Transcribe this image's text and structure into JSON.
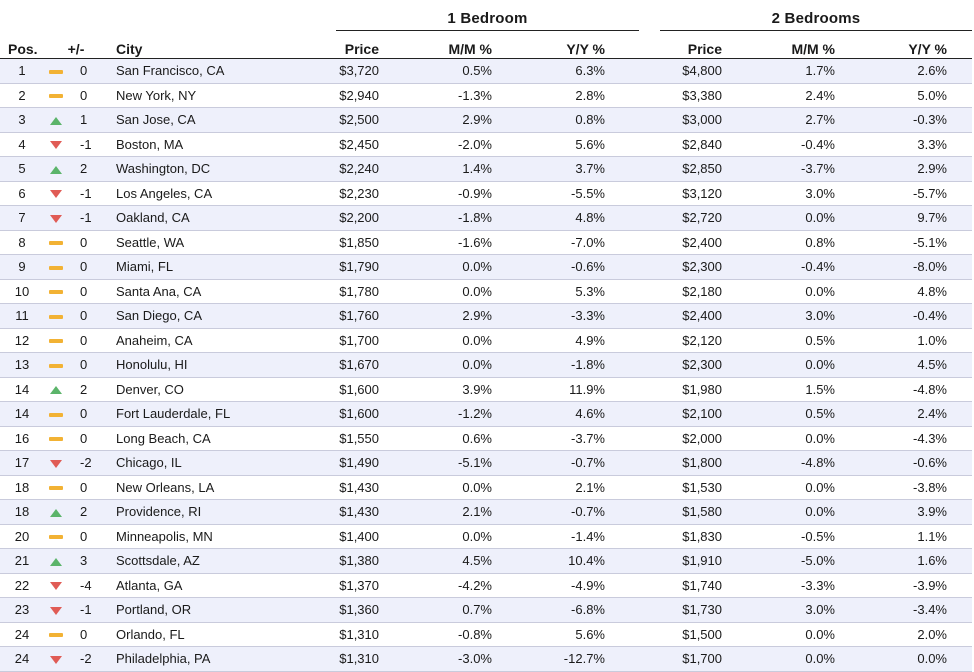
{
  "groups": {
    "one_bedroom": "1 Bedroom",
    "two_bedrooms": "2 Bedrooms"
  },
  "headers": {
    "pos": "Pos.",
    "change": "+/-",
    "city": "City",
    "price1": "Price",
    "mm1": "M/M %",
    "yy1": "Y/Y %",
    "price2": "Price",
    "mm2": "M/M %",
    "yy2": "Y/Y %"
  },
  "colors": {
    "up": "#5bb46a",
    "down": "#e05b55",
    "flat": "#f2b234",
    "row_stripe": "#eef0fb"
  },
  "rows": [
    {
      "pos": "1",
      "trend": "flat",
      "change": "0",
      "city": "San Francisco, CA",
      "p1": "$3,720",
      "mm1": "0.5%",
      "yy1": "6.3%",
      "p2": "$4,800",
      "mm2": "1.7%",
      "yy2": "2.6%"
    },
    {
      "pos": "2",
      "trend": "flat",
      "change": "0",
      "city": "New York, NY",
      "p1": "$2,940",
      "mm1": "-1.3%",
      "yy1": "2.8%",
      "p2": "$3,380",
      "mm2": "2.4%",
      "yy2": "5.0%"
    },
    {
      "pos": "3",
      "trend": "up",
      "change": "1",
      "city": "San Jose, CA",
      "p1": "$2,500",
      "mm1": "2.9%",
      "yy1": "0.8%",
      "p2": "$3,000",
      "mm2": "2.7%",
      "yy2": "-0.3%"
    },
    {
      "pos": "4",
      "trend": "down",
      "change": "-1",
      "city": "Boston, MA",
      "p1": "$2,450",
      "mm1": "-2.0%",
      "yy1": "5.6%",
      "p2": "$2,840",
      "mm2": "-0.4%",
      "yy2": "3.3%"
    },
    {
      "pos": "5",
      "trend": "up",
      "change": "2",
      "city": "Washington, DC",
      "p1": "$2,240",
      "mm1": "1.4%",
      "yy1": "3.7%",
      "p2": "$2,850",
      "mm2": "-3.7%",
      "yy2": "2.9%"
    },
    {
      "pos": "6",
      "trend": "down",
      "change": "-1",
      "city": "Los Angeles, CA",
      "p1": "$2,230",
      "mm1": "-0.9%",
      "yy1": "-5.5%",
      "p2": "$3,120",
      "mm2": "3.0%",
      "yy2": "-5.7%"
    },
    {
      "pos": "7",
      "trend": "down",
      "change": "-1",
      "city": "Oakland, CA",
      "p1": "$2,200",
      "mm1": "-1.8%",
      "yy1": "4.8%",
      "p2": "$2,720",
      "mm2": "0.0%",
      "yy2": "9.7%"
    },
    {
      "pos": "8",
      "trend": "flat",
      "change": "0",
      "city": "Seattle, WA",
      "p1": "$1,850",
      "mm1": "-1.6%",
      "yy1": "-7.0%",
      "p2": "$2,400",
      "mm2": "0.8%",
      "yy2": "-5.1%"
    },
    {
      "pos": "9",
      "trend": "flat",
      "change": "0",
      "city": "Miami, FL",
      "p1": "$1,790",
      "mm1": "0.0%",
      "yy1": "-0.6%",
      "p2": "$2,300",
      "mm2": "-0.4%",
      "yy2": "-8.0%"
    },
    {
      "pos": "10",
      "trend": "flat",
      "change": "0",
      "city": "Santa Ana, CA",
      "p1": "$1,780",
      "mm1": "0.0%",
      "yy1": "5.3%",
      "p2": "$2,180",
      "mm2": "0.0%",
      "yy2": "4.8%"
    },
    {
      "pos": "11",
      "trend": "flat",
      "change": "0",
      "city": "San Diego, CA",
      "p1": "$1,760",
      "mm1": "2.9%",
      "yy1": "-3.3%",
      "p2": "$2,400",
      "mm2": "3.0%",
      "yy2": "-0.4%"
    },
    {
      "pos": "12",
      "trend": "flat",
      "change": "0",
      "city": "Anaheim, CA",
      "p1": "$1,700",
      "mm1": "0.0%",
      "yy1": "4.9%",
      "p2": "$2,120",
      "mm2": "0.5%",
      "yy2": "1.0%"
    },
    {
      "pos": "13",
      "trend": "flat",
      "change": "0",
      "city": "Honolulu, HI",
      "p1": "$1,670",
      "mm1": "0.0%",
      "yy1": "-1.8%",
      "p2": "$2,300",
      "mm2": "0.0%",
      "yy2": "4.5%"
    },
    {
      "pos": "14",
      "trend": "up",
      "change": "2",
      "city": "Denver, CO",
      "p1": "$1,600",
      "mm1": "3.9%",
      "yy1": "11.9%",
      "p2": "$1,980",
      "mm2": "1.5%",
      "yy2": "-4.8%"
    },
    {
      "pos": "14",
      "trend": "flat",
      "change": "0",
      "city": "Fort Lauderdale, FL",
      "p1": "$1,600",
      "mm1": "-1.2%",
      "yy1": "4.6%",
      "p2": "$2,100",
      "mm2": "0.5%",
      "yy2": "2.4%"
    },
    {
      "pos": "16",
      "trend": "flat",
      "change": "0",
      "city": "Long Beach, CA",
      "p1": "$1,550",
      "mm1": "0.6%",
      "yy1": "-3.7%",
      "p2": "$2,000",
      "mm2": "0.0%",
      "yy2": "-4.3%"
    },
    {
      "pos": "17",
      "trend": "down",
      "change": "-2",
      "city": "Chicago, IL",
      "p1": "$1,490",
      "mm1": "-5.1%",
      "yy1": "-0.7%",
      "p2": "$1,800",
      "mm2": "-4.8%",
      "yy2": "-0.6%"
    },
    {
      "pos": "18",
      "trend": "flat",
      "change": "0",
      "city": "New Orleans, LA",
      "p1": "$1,430",
      "mm1": "0.0%",
      "yy1": "2.1%",
      "p2": "$1,530",
      "mm2": "0.0%",
      "yy2": "-3.8%"
    },
    {
      "pos": "18",
      "trend": "up",
      "change": "2",
      "city": "Providence, RI",
      "p1": "$1,430",
      "mm1": "2.1%",
      "yy1": "-0.7%",
      "p2": "$1,580",
      "mm2": "0.0%",
      "yy2": "3.9%"
    },
    {
      "pos": "20",
      "trend": "flat",
      "change": "0",
      "city": "Minneapolis, MN",
      "p1": "$1,400",
      "mm1": "0.0%",
      "yy1": "-1.4%",
      "p2": "$1,830",
      "mm2": "-0.5%",
      "yy2": "1.1%"
    },
    {
      "pos": "21",
      "trend": "up",
      "change": "3",
      "city": "Scottsdale, AZ",
      "p1": "$1,380",
      "mm1": "4.5%",
      "yy1": "10.4%",
      "p2": "$1,910",
      "mm2": "-5.0%",
      "yy2": "1.6%"
    },
    {
      "pos": "22",
      "trend": "down",
      "change": "-4",
      "city": "Atlanta, GA",
      "p1": "$1,370",
      "mm1": "-4.2%",
      "yy1": "-4.9%",
      "p2": "$1,740",
      "mm2": "-3.3%",
      "yy2": "-3.9%"
    },
    {
      "pos": "23",
      "trend": "down",
      "change": "-1",
      "city": "Portland, OR",
      "p1": "$1,360",
      "mm1": "0.7%",
      "yy1": "-6.8%",
      "p2": "$1,730",
      "mm2": "3.0%",
      "yy2": "-3.4%"
    },
    {
      "pos": "24",
      "trend": "flat",
      "change": "0",
      "city": "Orlando, FL",
      "p1": "$1,310",
      "mm1": "-0.8%",
      "yy1": "5.6%",
      "p2": "$1,500",
      "mm2": "0.0%",
      "yy2": "2.0%"
    },
    {
      "pos": "24",
      "trend": "down",
      "change": "-2",
      "city": "Philadelphia, PA",
      "p1": "$1,310",
      "mm1": "-3.0%",
      "yy1": "-12.7%",
      "p2": "$1,700",
      "mm2": "0.0%",
      "yy2": "0.0%"
    }
  ]
}
